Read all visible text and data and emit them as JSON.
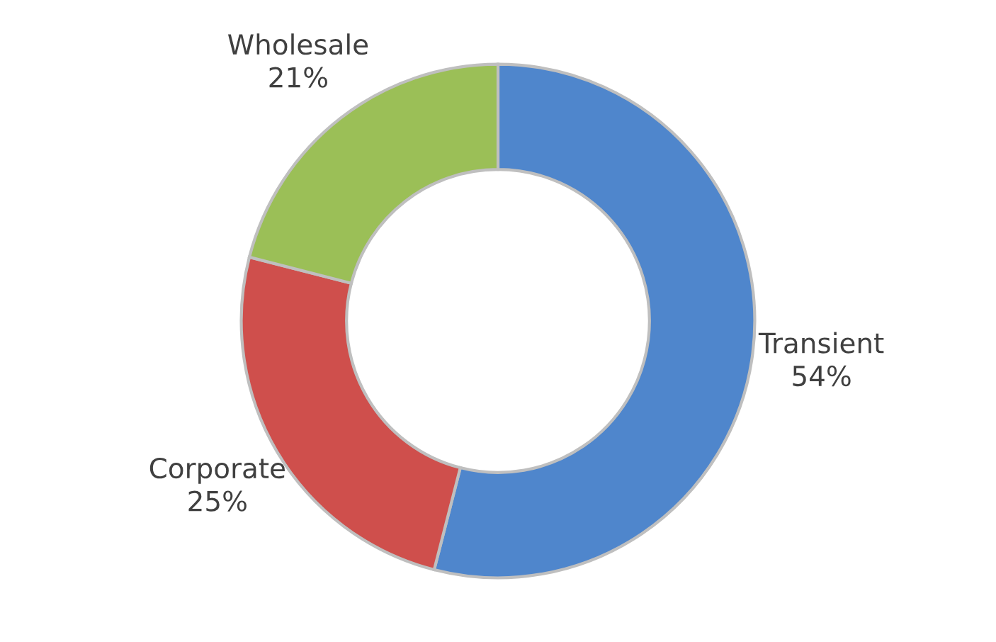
{
  "chart_data": {
    "type": "donut",
    "categories": [
      "Transient",
      "Corporate",
      "Wholesale"
    ],
    "values": [
      54,
      25,
      21
    ],
    "value_labels": [
      "54%",
      "25%",
      "21%"
    ],
    "colors": [
      "#4f86cc",
      "#cf4f4c",
      "#9bbf57"
    ],
    "legend": false
  }
}
